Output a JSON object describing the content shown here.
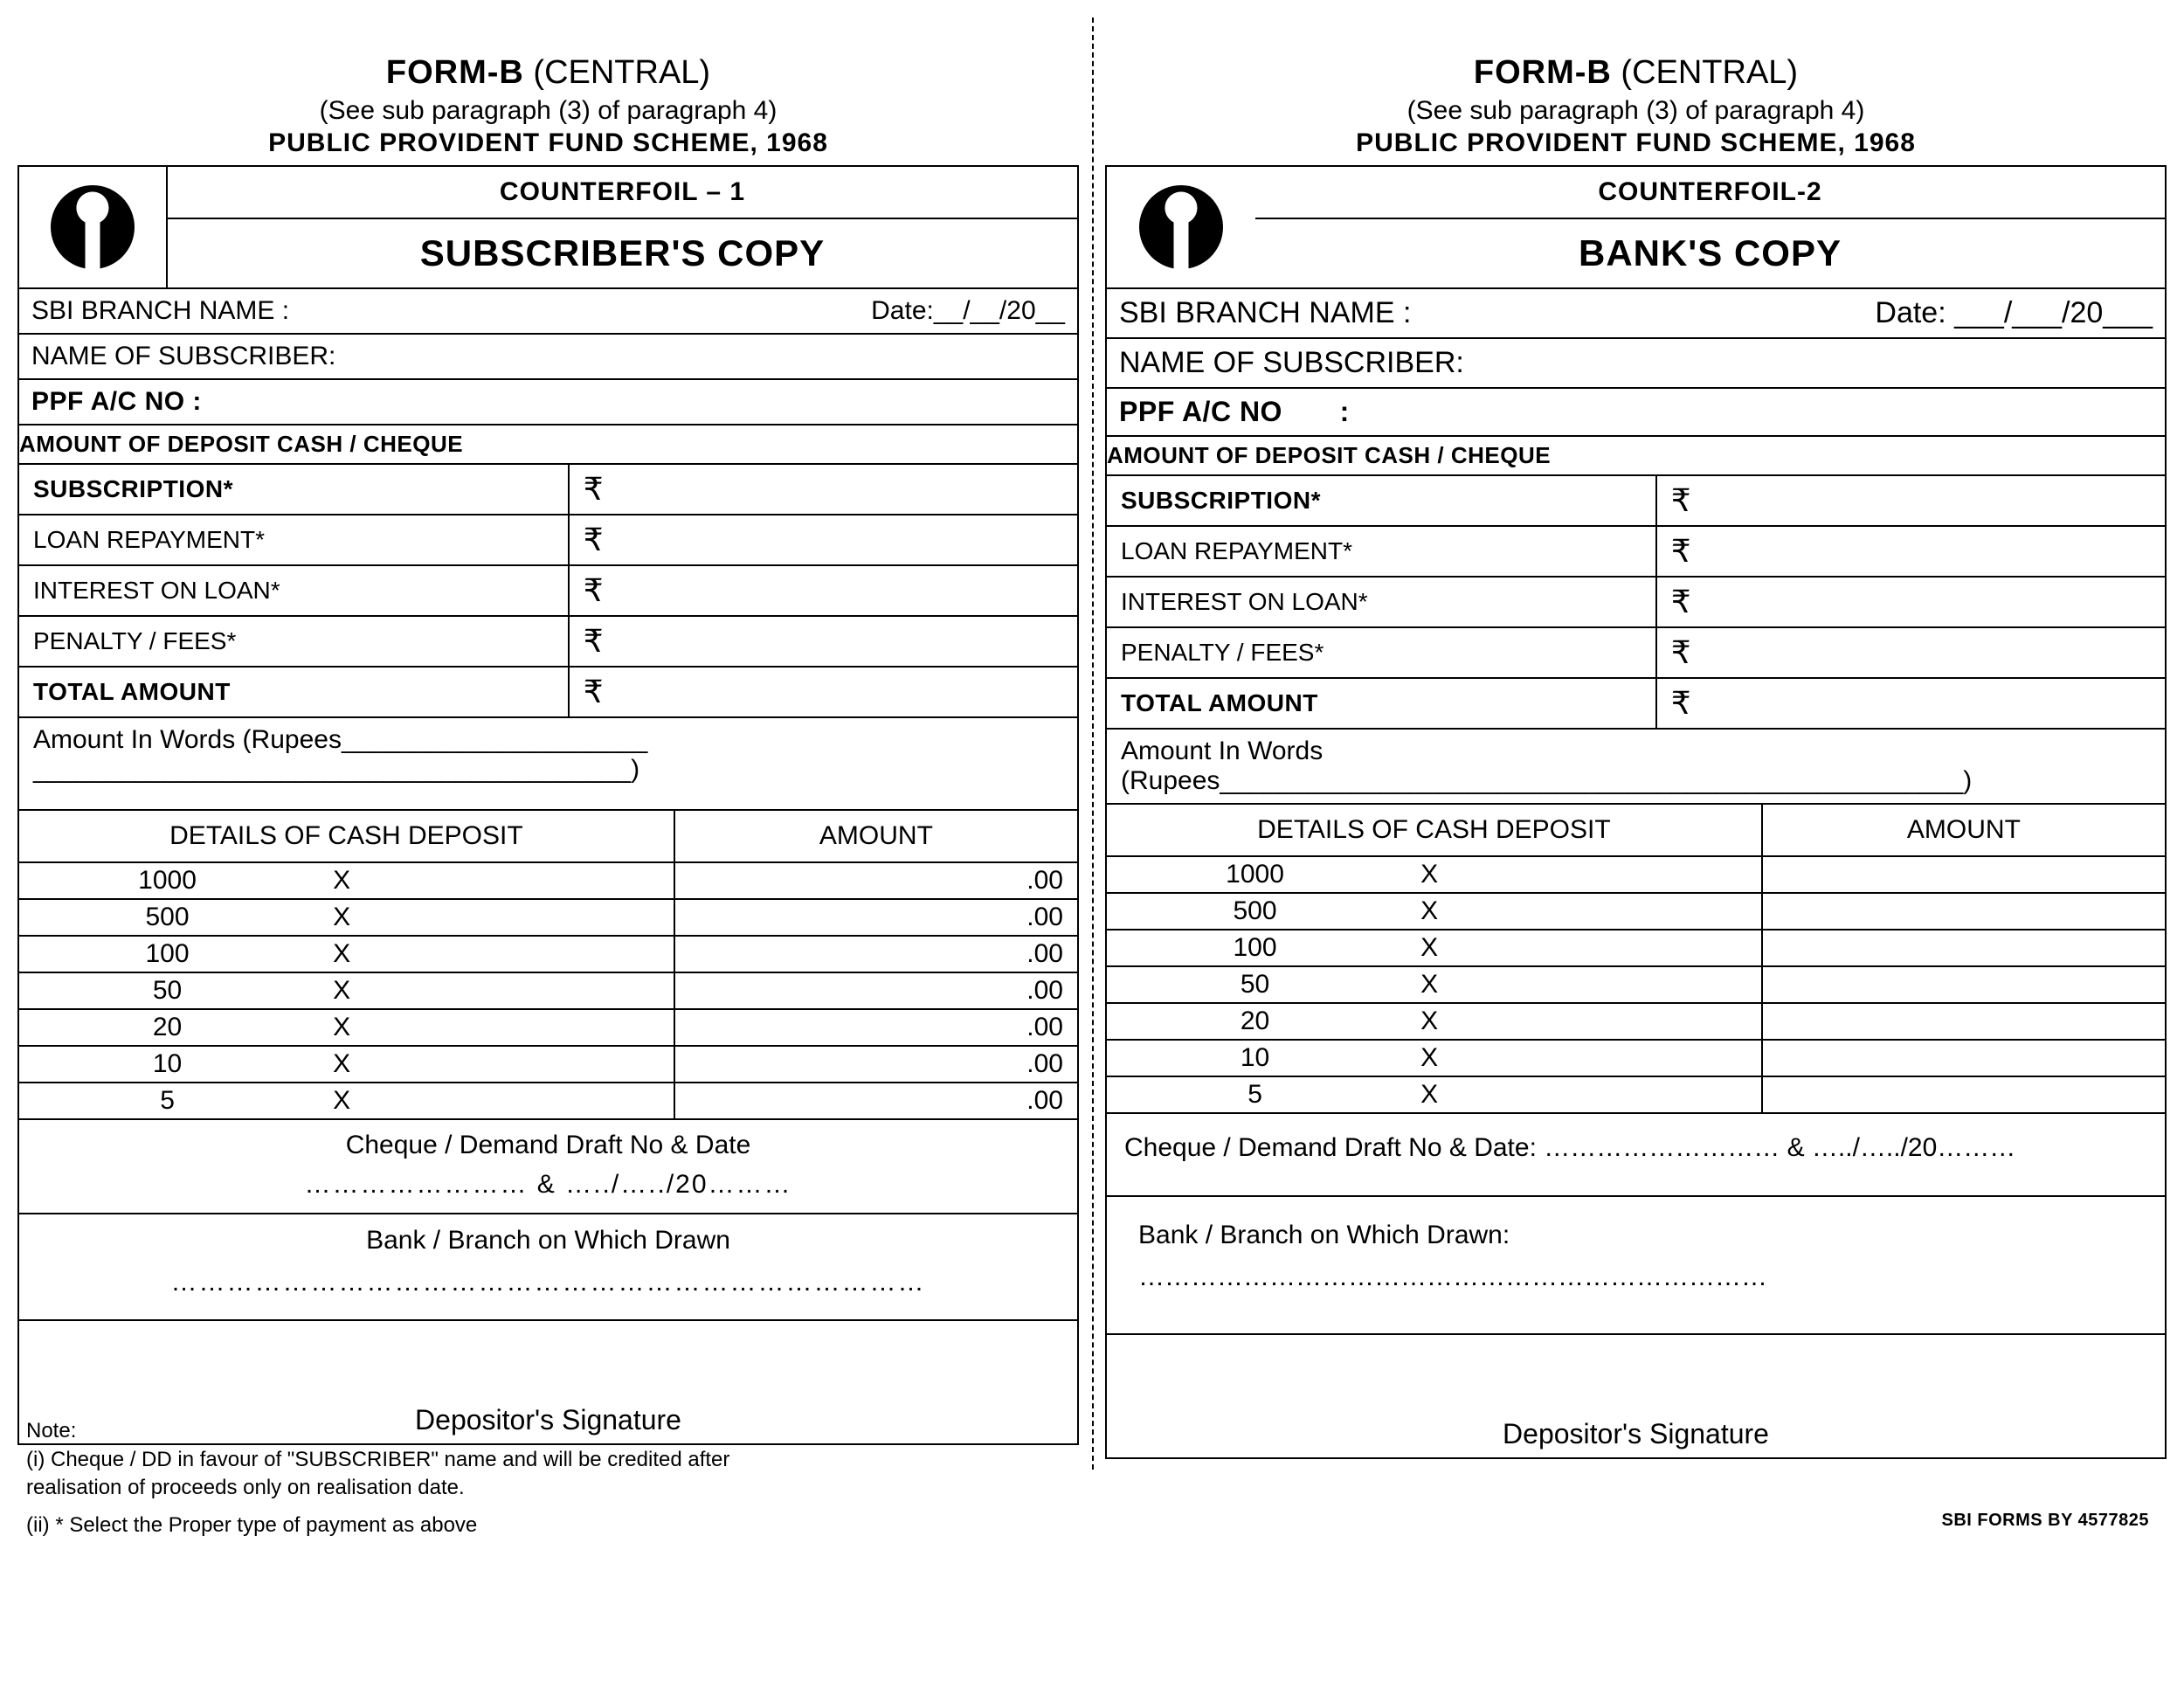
{
  "header": {
    "line1_bold": "FORM-B",
    "line1_rest": " (CENTRAL)",
    "line2": "(See sub paragraph (3) of paragraph 4)",
    "line3": "PUBLIC PROVIDENT FUND SCHEME, 1968"
  },
  "left": {
    "counterfoil": "COUNTERFOIL – 1",
    "copy": "SUBSCRIBER'S COPY",
    "branch_label": "SBI BRANCH NAME   :",
    "date_label": "Date:__/__/20__",
    "subscriber_label": "NAME OF SUBSCRIBER:",
    "ppf_label": "PPF A/C NO :",
    "deposit_hdr": "AMOUNT OF DEPOSIT CASH /  CHEQUE",
    "rows": [
      {
        "label": "SUBSCRIPTION*",
        "bold": true
      },
      {
        "label": "LOAN REPAYMENT*",
        "bold": false
      },
      {
        "label": "INTEREST ON LOAN*",
        "bold": false
      },
      {
        "label": "PENALTY /  FEES*",
        "bold": false
      },
      {
        "label": "TOTAL AMOUNT",
        "bold": true
      }
    ],
    "words": "Amount In Words (Rupees_____________________\n_________________________________________)",
    "cash_hdr_l": "DETAILS OF CASH DEPOSIT",
    "cash_hdr_r": "AMOUNT",
    "denoms": [
      "1000",
      "500",
      "100",
      "50",
      "20",
      "10",
      "5"
    ],
    "amt_suffix": ".00",
    "cheque_l1": "Cheque / Demand Draft  No & Date",
    "cheque_l2": "…………………… & …../…../20………",
    "bank_l1": "Bank / Branch on Which Drawn",
    "bank_l2": "………………………………………………………………………",
    "sig": "Depositor's Signature"
  },
  "right": {
    "counterfoil": "COUNTERFOIL-2",
    "copy": "BANK'S COPY",
    "branch_label": "SBI BRANCH NAME :",
    "date_label": "Date: ___/___/20___",
    "subscriber_label": "NAME OF SUBSCRIBER:",
    "ppf_label": "PPF A/C NO       :",
    "deposit_hdr": "AMOUNT OF DEPOSIT CASH /  CHEQUE",
    "rows": [
      {
        "label": "SUBSCRIPTION*",
        "bold": true
      },
      {
        "label": "LOAN REPAYMENT*",
        "bold": false
      },
      {
        "label": "INTEREST ON LOAN*",
        "bold": false
      },
      {
        "label": "PENALTY /  FEES*",
        "bold": false
      },
      {
        "label": "TOTAL AMOUNT",
        "bold": true
      }
    ],
    "words": "Amount In Words (Rupees___________________________________________________)",
    "cash_hdr_l": "DETAILS OF CASH DEPOSIT",
    "cash_hdr_r": "AMOUNT",
    "denoms": [
      "1000",
      "500",
      "100",
      "50",
      "20",
      "10",
      "5"
    ],
    "cheque": "Cheque / Demand Draft  No & Date:   ……………………… & …../…../20………",
    "bank": "Bank / Branch on Which Drawn:  ………………………………………………………………",
    "sig": "Depositor's Signature"
  },
  "notes": {
    "title": "Note:",
    "i": "(i) Cheque / DD in favour of \"SUBSCRIBER\" name and will be credited after\n     realisation of proceeds only on realisation date.",
    "ii": "(ii) *  Select the Proper type of payment as above"
  },
  "footer": "SBI FORMS BY 4577825",
  "rupee": "₹",
  "x_mark": "X"
}
